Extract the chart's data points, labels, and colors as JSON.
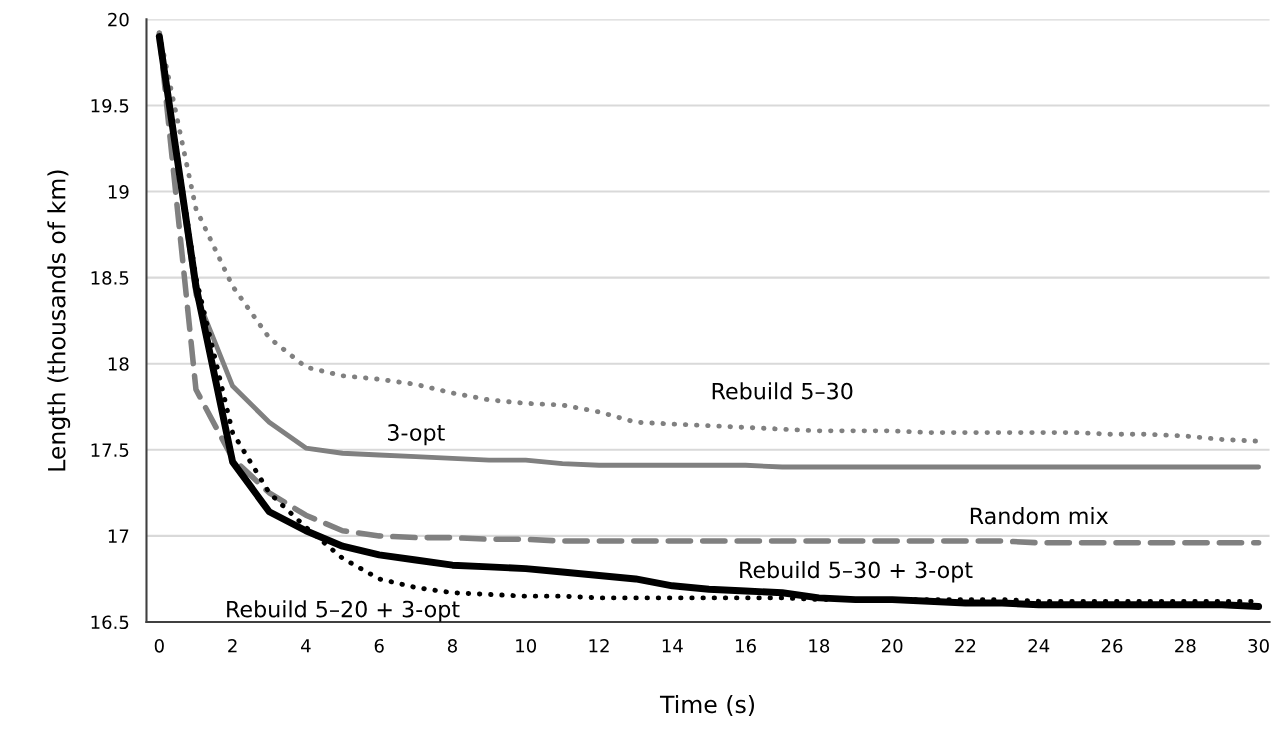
{
  "chart_data": {
    "type": "line",
    "xlabel": "Time (s)",
    "ylabel": "Length (thousands of km)",
    "x": [
      0,
      1,
      2,
      3,
      4,
      5,
      6,
      7,
      8,
      9,
      10,
      11,
      12,
      13,
      14,
      15,
      16,
      17,
      18,
      19,
      20,
      21,
      22,
      23,
      24,
      25,
      26,
      27,
      28,
      29,
      30
    ],
    "xlim": [
      -0.35,
      30.3
    ],
    "xticks": [
      0,
      2,
      4,
      6,
      8,
      10,
      12,
      14,
      16,
      18,
      20,
      22,
      24,
      26,
      28,
      30
    ],
    "ylim": [
      16.5,
      20
    ],
    "yticks": [
      16.5,
      17,
      17.5,
      18,
      18.5,
      19,
      19.5,
      20
    ],
    "grid": "y",
    "legend": false,
    "series": [
      {
        "name": "Rebuild 5–30",
        "color": "#808080",
        "line_style": "dotted",
        "values": [
          19.92,
          18.9,
          18.45,
          18.15,
          17.98,
          17.93,
          17.91,
          17.88,
          17.83,
          17.79,
          17.77,
          17.76,
          17.72,
          17.66,
          17.65,
          17.64,
          17.63,
          17.62,
          17.61,
          17.61,
          17.61,
          17.6,
          17.6,
          17.6,
          17.6,
          17.6,
          17.59,
          17.59,
          17.58,
          17.56,
          17.55
        ]
      },
      {
        "name": "3-opt",
        "color": "#808080",
        "line_style": "solid",
        "values": [
          19.92,
          18.4,
          17.87,
          17.66,
          17.51,
          17.48,
          17.47,
          17.46,
          17.45,
          17.44,
          17.44,
          17.42,
          17.41,
          17.41,
          17.41,
          17.41,
          17.41,
          17.4,
          17.4,
          17.4,
          17.4,
          17.4,
          17.4,
          17.4,
          17.4,
          17.4,
          17.4,
          17.4,
          17.4,
          17.4,
          17.4
        ]
      },
      {
        "name": "Random mix",
        "color": "#808080",
        "line_style": "dashed",
        "values": [
          19.92,
          17.85,
          17.45,
          17.25,
          17.12,
          17.03,
          17.0,
          16.99,
          16.99,
          16.98,
          16.98,
          16.97,
          16.97,
          16.97,
          16.97,
          16.97,
          16.97,
          16.97,
          16.97,
          16.97,
          16.97,
          16.97,
          16.97,
          16.97,
          16.96,
          16.96,
          16.96,
          16.96,
          16.96,
          16.96,
          16.96
        ]
      },
      {
        "name": "Rebuild 5–30 + 3-opt",
        "color": "#000000",
        "line_style": "solid",
        "values": [
          19.9,
          18.45,
          17.43,
          17.14,
          17.03,
          16.94,
          16.89,
          16.86,
          16.83,
          16.82,
          16.81,
          16.79,
          16.77,
          16.75,
          16.71,
          16.69,
          16.68,
          16.67,
          16.64,
          16.63,
          16.63,
          16.62,
          16.61,
          16.61,
          16.6,
          16.6,
          16.6,
          16.6,
          16.6,
          16.6,
          16.59
        ]
      },
      {
        "name": "Rebuild 5–20 + 3-opt",
        "color": "#000000",
        "line_style": "dotted",
        "values": [
          19.9,
          18.5,
          17.6,
          17.25,
          17.05,
          16.87,
          16.75,
          16.7,
          16.67,
          16.66,
          16.65,
          16.65,
          16.64,
          16.64,
          16.64,
          16.64,
          16.64,
          16.64,
          16.63,
          16.63,
          16.63,
          16.63,
          16.63,
          16.63,
          16.62,
          16.62,
          16.62,
          16.62,
          16.62,
          16.62,
          16.62
        ]
      }
    ]
  }
}
